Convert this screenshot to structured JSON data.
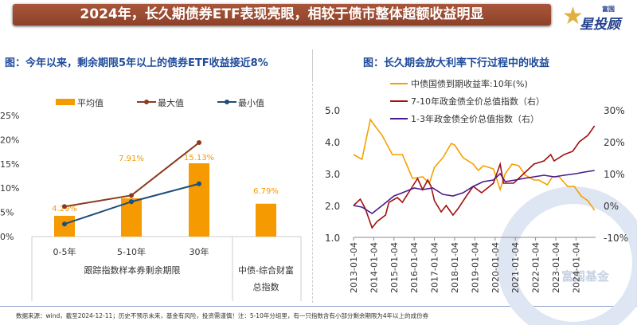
{
  "header": {
    "title": "2024年，长久期债券ETF表现亮眼，相较于债市整体超额收益明显",
    "logo_small": "富国",
    "logo_big": "星投顾"
  },
  "left_title": "图：今年以来，剩余期限5年以上的债券ETF收益接近8%",
  "right_title": "图：长久期会放大利率下行过程中的收益",
  "footer": "数据来源：wind，截至2024-12-11；历史不预示未来，基金有风险，投资需谨慎！注：5-10年分组里，有一只指数含有小部分剩余期限为4年以上的成份券",
  "watermark": "富国基金",
  "colors": {
    "bar": "#f59a00",
    "max": "#8b3a1f",
    "min": "#1f4e79",
    "yield": "#f5a000",
    "idx710": "#a01010",
    "idx13": "#4b1a8a"
  },
  "chart_data": [
    {
      "type": "bar",
      "categories": [
        "0-5年",
        "5-10年",
        "30年",
        "中债-综合财富总指数"
      ],
      "group_labels": [
        "跟踪指数样本券剩余期限",
        "中债-综合财富总指数"
      ],
      "group_label_lines": [
        "中债-综合财富",
        "总指数"
      ],
      "yticks": [
        "0%",
        "5%",
        "10%",
        "15%",
        "20%",
        "25%"
      ],
      "ylim": [
        0,
        25
      ],
      "series": [
        {
          "name": "平均值",
          "type": "bar",
          "values": [
            4.29,
            7.91,
            15.13,
            6.79
          ],
          "labels": [
            "4.29%",
            "7.91%",
            "15.13%",
            "6.79%"
          ]
        },
        {
          "name": "最大值",
          "type": "line",
          "values": [
            6.2,
            8.5,
            19.4,
            null
          ]
        },
        {
          "name": "最小值",
          "type": "line",
          "values": [
            2.6,
            7.2,
            10.9,
            null
          ]
        }
      ],
      "legend": "top"
    },
    {
      "type": "line",
      "ylim_left": [
        1.0,
        5.0
      ],
      "yticks_left": [
        "1.0",
        "2.0",
        "3.0",
        "4.0",
        "5.0"
      ],
      "ylim_right": [
        -10,
        30
      ],
      "yticks_right": [
        "-10%",
        "0%",
        "10%",
        "20%",
        "30%"
      ],
      "xticks": [
        "2013-01-04",
        "2014-01-04",
        "2015-01-04",
        "2016-01-04",
        "2017-01-04",
        "2018-01-04",
        "2019-01-04",
        "2020-01-04",
        "2021-01-04",
        "2022-01-04",
        "2023-01-04",
        "2024-01-04"
      ],
      "legend": "top",
      "series": [
        {
          "name": "中债国债到期收益率:10年(%)",
          "axis": "left",
          "points": [
            [
              "2013-01",
              3.6
            ],
            [
              "2013-06",
              3.45
            ],
            [
              "2013-11",
              4.7
            ],
            [
              "2014-01",
              4.55
            ],
            [
              "2014-06",
              4.2
            ],
            [
              "2014-12",
              3.6
            ],
            [
              "2015-06",
              3.6
            ],
            [
              "2015-12",
              2.85
            ],
            [
              "2016-06",
              2.9
            ],
            [
              "2016-10",
              2.7
            ],
            [
              "2017-01",
              3.2
            ],
            [
              "2017-06",
              3.5
            ],
            [
              "2017-11",
              3.95
            ],
            [
              "2018-01",
              3.9
            ],
            [
              "2018-06",
              3.5
            ],
            [
              "2018-12",
              3.3
            ],
            [
              "2019-03",
              3.1
            ],
            [
              "2019-06",
              3.25
            ],
            [
              "2019-12",
              3.15
            ],
            [
              "2020-04",
              2.5
            ],
            [
              "2020-07",
              3.0
            ],
            [
              "2020-11",
              3.3
            ],
            [
              "2021-03",
              3.25
            ],
            [
              "2021-07",
              2.95
            ],
            [
              "2021-12",
              2.8
            ],
            [
              "2022-03",
              2.8
            ],
            [
              "2022-08",
              2.65
            ],
            [
              "2022-11",
              2.9
            ],
            [
              "2023-03",
              2.9
            ],
            [
              "2023-08",
              2.6
            ],
            [
              "2023-12",
              2.6
            ],
            [
              "2024-04",
              2.3
            ],
            [
              "2024-08",
              2.15
            ],
            [
              "2024-12",
              1.85
            ]
          ]
        },
        {
          "name": "7-10年政金债全价总值指数（右）",
          "axis": "right",
          "points": [
            [
              "2013-01",
              0
            ],
            [
              "2013-05",
              2
            ],
            [
              "2013-08",
              -1
            ],
            [
              "2013-12",
              -7
            ],
            [
              "2014-03",
              -5
            ],
            [
              "2014-08",
              -3
            ],
            [
              "2014-10",
              1
            ],
            [
              "2015-03",
              2.5
            ],
            [
              "2015-06",
              1
            ],
            [
              "2015-12",
              6
            ],
            [
              "2016-03",
              8.5
            ],
            [
              "2016-06",
              5
            ],
            [
              "2016-09",
              8
            ],
            [
              "2016-11",
              6
            ],
            [
              "2017-01",
              1.5
            ],
            [
              "2017-05",
              -2
            ],
            [
              "2017-08",
              0
            ],
            [
              "2017-12",
              -3
            ],
            [
              "2018-03",
              -1
            ],
            [
              "2018-08",
              3
            ],
            [
              "2018-12",
              6
            ],
            [
              "2019-05",
              4
            ],
            [
              "2019-12",
              7
            ],
            [
              "2020-04",
              13
            ],
            [
              "2020-06",
              7
            ],
            [
              "2020-12",
              7
            ],
            [
              "2021-06",
              10
            ],
            [
              "2021-12",
              13
            ],
            [
              "2022-06",
              14
            ],
            [
              "2022-10",
              16
            ],
            [
              "2022-12",
              14
            ],
            [
              "2023-06",
              16
            ],
            [
              "2023-11",
              17
            ],
            [
              "2024-03",
              20
            ],
            [
              "2024-08",
              22
            ],
            [
              "2024-12",
              25
            ]
          ]
        },
        {
          "name": "1-3年政金债全价总值指数（右）",
          "axis": "right",
          "points": [
            [
              "2013-01",
              0
            ],
            [
              "2013-06",
              -0.5
            ],
            [
              "2013-12",
              -2.5
            ],
            [
              "2014-06",
              0
            ],
            [
              "2015-01",
              3
            ],
            [
              "2015-06",
              4
            ],
            [
              "2016-01",
              5.5
            ],
            [
              "2016-06",
              5
            ],
            [
              "2016-12",
              5.5
            ],
            [
              "2017-06",
              3.5
            ],
            [
              "2017-12",
              3
            ],
            [
              "2018-06",
              4
            ],
            [
              "2018-12",
              6
            ],
            [
              "2019-06",
              7.5
            ],
            [
              "2019-12",
              8
            ],
            [
              "2020-04",
              10
            ],
            [
              "2020-07",
              7.5
            ],
            [
              "2021-01",
              8
            ],
            [
              "2021-06",
              8.5
            ],
            [
              "2021-12",
              9
            ],
            [
              "2022-06",
              9.5
            ],
            [
              "2022-12",
              9
            ],
            [
              "2023-06",
              9.5
            ],
            [
              "2024-01",
              10
            ],
            [
              "2024-06",
              10.5
            ],
            [
              "2024-12",
              11
            ]
          ]
        }
      ]
    }
  ]
}
